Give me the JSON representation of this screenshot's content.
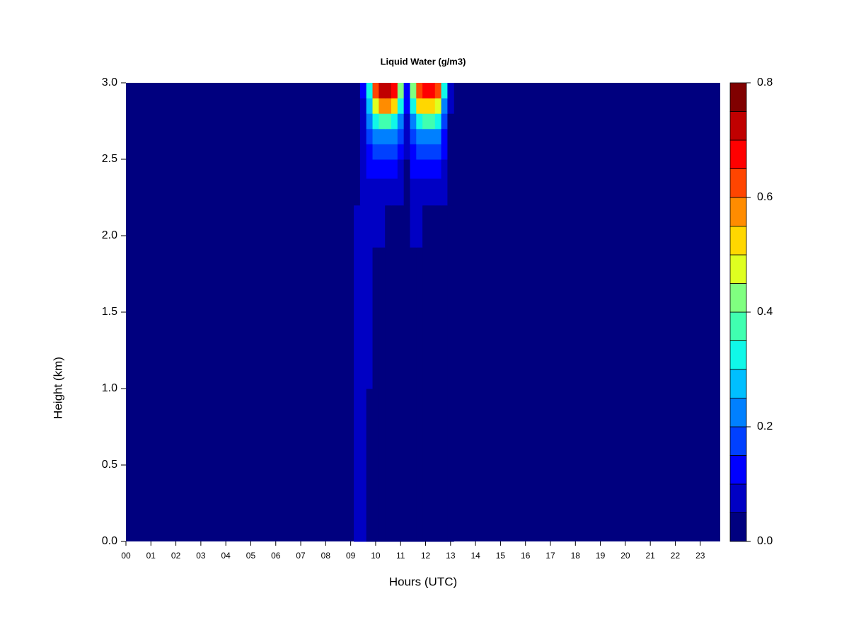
{
  "chart_data": {
    "type": "heatmap",
    "title": "Liquid Water (g/m3)",
    "x_label": "Hours (UTC)",
    "y_label": "Height (km)",
    "xlim": [
      0,
      23.8
    ],
    "ylim": [
      0,
      3.0
    ],
    "xticks": [
      {
        "value": 0,
        "label": "00"
      },
      {
        "value": 1,
        "label": "01"
      },
      {
        "value": 2,
        "label": "02"
      },
      {
        "value": 3,
        "label": "03"
      },
      {
        "value": 4,
        "label": "04"
      },
      {
        "value": 5,
        "label": "05"
      },
      {
        "value": 6,
        "label": "06"
      },
      {
        "value": 7,
        "label": "07"
      },
      {
        "value": 8,
        "label": "08"
      },
      {
        "value": 9,
        "label": "09"
      },
      {
        "value": 10,
        "label": "10"
      },
      {
        "value": 11,
        "label": "11"
      },
      {
        "value": 12,
        "label": "12"
      },
      {
        "value": 13,
        "label": "13"
      },
      {
        "value": 14,
        "label": "14"
      },
      {
        "value": 15,
        "label": "15"
      },
      {
        "value": 16,
        "label": "16"
      },
      {
        "value": 17,
        "label": "17"
      },
      {
        "value": 18,
        "label": "18"
      },
      {
        "value": 19,
        "label": "19"
      },
      {
        "value": 20,
        "label": "20"
      },
      {
        "value": 21,
        "label": "21"
      },
      {
        "value": 22,
        "label": "22"
      },
      {
        "value": 23,
        "label": "23"
      }
    ],
    "yticks": [
      {
        "value": 0,
        "label": "0.0"
      },
      0.5,
      {
        "value": 1,
        "label": "1.0"
      },
      1.5,
      {
        "value": 2,
        "label": "2.0"
      },
      2.5,
      {
        "value": 3,
        "label": "3.0"
      }
    ],
    "levels": [
      0,
      0.05,
      0.1,
      0.15,
      0.2,
      0.25,
      0.3,
      0.35,
      0.4,
      0.45,
      0.5,
      0.55,
      0.6,
      0.65,
      0.7,
      0.75,
      0.8
    ],
    "colors": [
      "#00007f",
      "#0000c4",
      "#0000ff",
      "#0040ff",
      "#0080ff",
      "#00bfff",
      "#10f8e8",
      "#40ffb0",
      "#80ff80",
      "#dfff20",
      "#ffd700",
      "#ff8c00",
      "#ff4500",
      "#ff0000",
      "#c00000",
      "#800000"
    ],
    "colorbar_ticks": [
      {
        "value": 0,
        "label": "0.0"
      },
      0.2,
      0.4,
      0.6,
      0.8
    ],
    "x": [
      9.25,
      9.5,
      9.75,
      10.0,
      10.25,
      10.5,
      10.75,
      11.0,
      11.25,
      11.5,
      11.75,
      12.0,
      12.25,
      12.5,
      12.75,
      13.0
    ],
    "y": [
      0.25,
      0.75,
      1.25,
      1.75,
      2.1,
      2.3,
      2.45,
      2.55,
      2.65,
      2.75,
      2.85,
      2.95
    ],
    "z": [
      [
        0.06,
        0.06,
        0,
        0,
        0,
        0,
        0,
        0,
        0,
        0,
        0,
        0,
        0,
        0,
        0,
        0
      ],
      [
        0.07,
        0.07,
        0.02,
        0,
        0,
        0,
        0,
        0,
        0,
        0,
        0,
        0,
        0,
        0,
        0,
        0
      ],
      [
        0.08,
        0.07,
        0.06,
        0,
        0,
        0,
        0,
        0,
        0,
        0,
        0,
        0,
        0,
        0,
        0,
        0
      ],
      [
        0.07,
        0.06,
        0.06,
        0,
        0,
        0,
        0,
        0,
        0,
        0,
        0,
        0,
        0,
        0,
        0,
        0
      ],
      [
        0.06,
        0.06,
        0.07,
        0.06,
        0.05,
        0.04,
        0.04,
        0.03,
        0.02,
        0.06,
        0.05,
        0.04,
        0.04,
        0.03,
        0,
        0
      ],
      [
        0.04,
        0.06,
        0.08,
        0.08,
        0.08,
        0.08,
        0.07,
        0.06,
        0.03,
        0.08,
        0.09,
        0.09,
        0.08,
        0.08,
        0.06,
        0
      ],
      [
        0.03,
        0.06,
        0.1,
        0.12,
        0.12,
        0.12,
        0.11,
        0.08,
        0.04,
        0.1,
        0.12,
        0.12,
        0.12,
        0.11,
        0.08,
        0.02
      ],
      [
        0.02,
        0.07,
        0.13,
        0.16,
        0.17,
        0.17,
        0.16,
        0.12,
        0.05,
        0.13,
        0.16,
        0.17,
        0.17,
        0.15,
        0.1,
        0.03
      ],
      [
        0.02,
        0.08,
        0.17,
        0.22,
        0.24,
        0.24,
        0.22,
        0.17,
        0.06,
        0.17,
        0.22,
        0.24,
        0.24,
        0.21,
        0.13,
        0.03
      ],
      [
        0.02,
        0.08,
        0.22,
        0.32,
        0.38,
        0.38,
        0.34,
        0.24,
        0.08,
        0.24,
        0.33,
        0.36,
        0.36,
        0.32,
        0.18,
        0.04
      ],
      [
        0.02,
        0.09,
        0.28,
        0.45,
        0.55,
        0.56,
        0.5,
        0.34,
        0.1,
        0.34,
        0.5,
        0.52,
        0.52,
        0.46,
        0.24,
        0.05
      ],
      [
        0.02,
        0.1,
        0.34,
        0.6,
        0.72,
        0.74,
        0.66,
        0.44,
        0.12,
        0.44,
        0.64,
        0.66,
        0.66,
        0.6,
        0.3,
        0.06
      ]
    ]
  }
}
